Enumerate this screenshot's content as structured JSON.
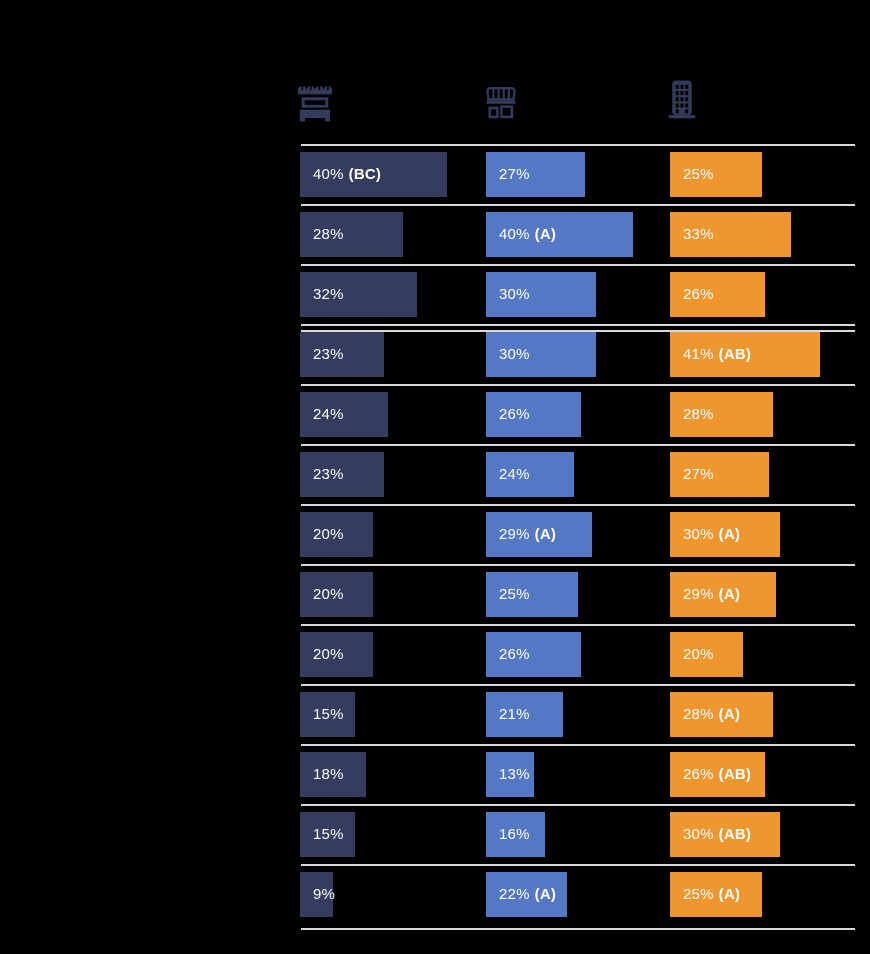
{
  "page": {
    "background_color": "#000000",
    "icon_color": "#333A5A",
    "separator_color": "#D9D9D9",
    "value_text_color": "#FFFFFF"
  },
  "header": {
    "columns": [
      {
        "icon": "market-stall-icon"
      },
      {
        "icon": "storefront-icon"
      },
      {
        "icon": "office-building-icon"
      }
    ]
  },
  "chart_data": {
    "type": "bar",
    "orientation": "horizontal",
    "value_unit": "%",
    "grid": "light horizontal separator line between every row; double line after row 3; top and bottom border lines",
    "legend_position": "column icons on top (market stall, storefront, office building)",
    "row_count": 13,
    "group_break_after_row": 3,
    "series": [
      {
        "name": "market-stall",
        "color": "#363C5E",
        "values": [
          40,
          28,
          32,
          23,
          24,
          23,
          20,
          20,
          20,
          15,
          18,
          15,
          9
        ],
        "labels": [
          "40%",
          "28%",
          "32%",
          "23%",
          "24%",
          "23%",
          "20%",
          "20%",
          "20%",
          "15%",
          "18%",
          "15%",
          "9%"
        ],
        "annotations": [
          "(BC)",
          "",
          "",
          "",
          "",
          "",
          "",
          "",
          "",
          "",
          "",
          "",
          ""
        ]
      },
      {
        "name": "storefront",
        "color": "#5478C3",
        "values": [
          27,
          40,
          30,
          30,
          26,
          24,
          29,
          25,
          26,
          21,
          13,
          16,
          22
        ],
        "labels": [
          "27%",
          "40%",
          "30%",
          "30%",
          "26%",
          "24%",
          "29%",
          "25%",
          "26%",
          "21%",
          "13%",
          "16%",
          "22%"
        ],
        "annotations": [
          "",
          "(A)",
          "",
          "",
          "",
          "",
          "(A)",
          "",
          "",
          "",
          "",
          "",
          "(A)"
        ]
      },
      {
        "name": "office-building",
        "color": "#F0962E",
        "values": [
          25,
          33,
          26,
          41,
          28,
          27,
          30,
          29,
          20,
          28,
          26,
          30,
          25
        ],
        "labels": [
          "25%",
          "33%",
          "26%",
          "41%",
          "28%",
          "27%",
          "30%",
          "29%",
          "20%",
          "28%",
          "26%",
          "30%",
          "25%"
        ],
        "annotations": [
          "",
          "",
          "",
          "(AB)",
          "",
          "",
          "(A)",
          "(A)",
          "",
          "(A)",
          "(AB)",
          "(AB)",
          "(A)"
        ]
      }
    ]
  }
}
